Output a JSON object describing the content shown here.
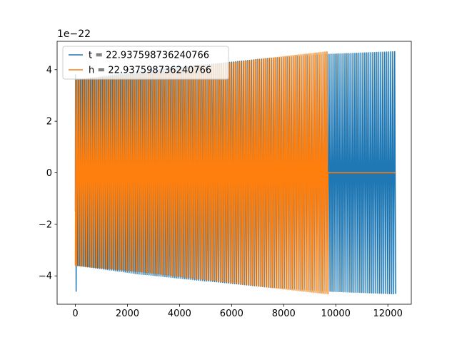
{
  "chart_data": {
    "type": "line",
    "title": "",
    "xlabel": "",
    "ylabel": "",
    "offset_label": "1e−22",
    "xlim": [
      -700,
      12900
    ],
    "ylim": [
      -5.1,
      5.1
    ],
    "x_ticks": [
      0,
      2000,
      4000,
      6000,
      8000,
      10000,
      12000
    ],
    "x_tick_labels": [
      "0",
      "2000",
      "4000",
      "6000",
      "8000",
      "10000",
      "12000"
    ],
    "y_ticks": [
      -4,
      -2,
      0,
      2,
      4
    ],
    "y_tick_labels": [
      "−4",
      "−2",
      "0",
      "2",
      "4"
    ],
    "grid": false,
    "legend_position": "top-left",
    "series": [
      {
        "name": "t = 22.937598736240766",
        "color": "#1f77b4",
        "x_range": [
          0,
          12300
        ],
        "cycles": 160,
        "amplitude_start": 3.6,
        "amplitude_end": 4.7,
        "x": [
          0,
          30,
          60,
          100,
          2600,
          2700,
          5000,
          5100,
          7500,
          7600,
          9700,
          9800,
          12300
        ],
        "y_upper": [
          3.8,
          -4.6,
          3.6,
          3.6,
          3.95,
          3.95,
          4.2,
          4.2,
          4.45,
          4.45,
          4.6,
          4.6,
          4.7
        ],
        "y_lower": [
          -1.5,
          -4.6,
          -3.6,
          -3.6,
          -3.95,
          -3.95,
          -4.2,
          -4.2,
          -4.45,
          -4.45,
          -4.6,
          -4.6,
          -4.7
        ]
      },
      {
        "name": "h = 22.937598736240766",
        "color": "#ff7f0e",
        "x_range": [
          0,
          9700
        ],
        "cycles": 126,
        "amplitude_start": 3.6,
        "amplitude_end": 4.7,
        "x": [
          0,
          2600,
          5000,
          7500,
          9700,
          9750,
          12300
        ],
        "y_upper": [
          3.6,
          3.85,
          4.15,
          4.45,
          4.7,
          0,
          0
        ],
        "y_lower": [
          -3.6,
          -3.85,
          -4.15,
          -4.45,
          -4.7,
          0,
          0
        ],
        "flat_after": {
          "x": [
            9700,
            12300
          ],
          "y": 0
        }
      }
    ]
  }
}
